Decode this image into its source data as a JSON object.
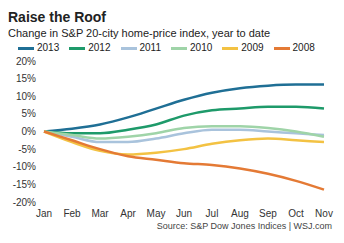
{
  "chart_data": {
    "type": "line",
    "title": "Raise the Roof",
    "subtitle": "Change in S&P 20-city home-price index, year to date",
    "source": "Source: S&P Dow Jones Indices | WSJ.com",
    "categories": [
      "Jan",
      "Feb",
      "Mar",
      "Apr",
      "May",
      "Jun",
      "Jul",
      "Aug",
      "Sep",
      "Oct",
      "Nov"
    ],
    "series": [
      {
        "name": "2013",
        "color": "#1f6f95",
        "values": [
          0,
          0.8,
          2,
          4,
          6.5,
          9,
          11,
          12.3,
          13,
          13.3,
          13.3
        ]
      },
      {
        "name": "2012",
        "color": "#1e9a6a",
        "values": [
          0,
          -0.5,
          -0.5,
          0.5,
          2,
          4.5,
          6,
          6.5,
          7,
          7,
          6.5
        ]
      },
      {
        "name": "2011",
        "color": "#a9c3dc",
        "values": [
          0,
          -1.5,
          -3,
          -3,
          -2,
          -0.5,
          0.5,
          0.5,
          0,
          -0.5,
          -1
        ]
      },
      {
        "name": "2010",
        "color": "#9fd4a8",
        "values": [
          0,
          -1,
          -2,
          -1.5,
          -0.5,
          1,
          1.5,
          1.5,
          1,
          0,
          -1.5
        ]
      },
      {
        "name": "2009",
        "color": "#f3c243",
        "values": [
          0,
          -3,
          -5.5,
          -6.5,
          -6,
          -5,
          -3.5,
          -2.5,
          -2,
          -2.5,
          -3
        ]
      },
      {
        "name": "2008",
        "color": "#e47a35",
        "values": [
          0,
          -2.5,
          -5,
          -7,
          -8,
          -9,
          -9.5,
          -10.5,
          -12,
          -14,
          -16.5
        ]
      }
    ],
    "ylim": [
      -20,
      20
    ],
    "yticks": [
      {
        "value": 20,
        "label": "20%"
      },
      {
        "value": 15,
        "label": "15%"
      },
      {
        "value": 10,
        "label": "10%"
      },
      {
        "value": 5,
        "label": "5%"
      },
      {
        "value": 0,
        "label": "0%"
      },
      {
        "value": -5,
        "label": "-5%"
      },
      {
        "value": -10,
        "label": "-10%"
      },
      {
        "value": -15,
        "label": "-15%"
      },
      {
        "value": -20,
        "label": "-20%"
      }
    ],
    "grid": false,
    "legend": "top"
  }
}
